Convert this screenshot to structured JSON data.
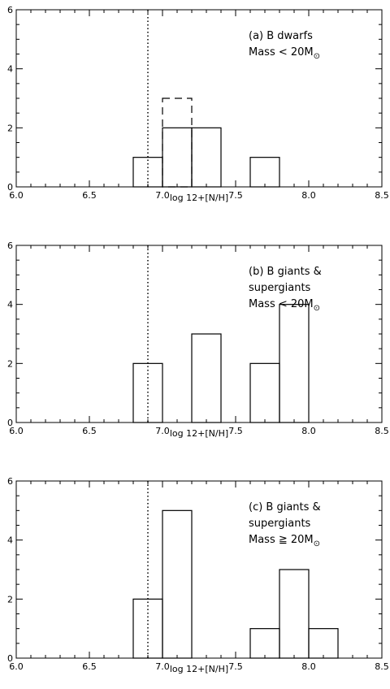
{
  "chart_data": [
    {
      "type": "bar",
      "panel_label": "(a) B dwarfs",
      "panel_sublabel": "Mass < 20M",
      "sun_symbol": "⊙",
      "xlabel": "log 12+[N/H]",
      "xlim": [
        6.0,
        8.5
      ],
      "ylim": [
        0,
        6
      ],
      "x_ticks": [
        "6.0",
        "6.5",
        "7.0",
        "7.5",
        "8.0",
        "8.5"
      ],
      "y_ticks": [
        "0",
        "2",
        "4",
        "6"
      ],
      "reference_line_x": 6.9,
      "bins": [
        {
          "x0": 6.8,
          "x1": 7.0,
          "count": 1
        },
        {
          "x0": 7.0,
          "x1": 7.2,
          "count": 2
        },
        {
          "x0": 7.2,
          "x1": 7.4,
          "count": 2
        },
        {
          "x0": 7.6,
          "x1": 7.8,
          "count": 1
        }
      ],
      "dashed_bins": [
        {
          "x0": 7.0,
          "x1": 7.2,
          "count": 3
        }
      ]
    },
    {
      "type": "bar",
      "panel_label": "(b) B giants &",
      "panel_label_2": "supergiants",
      "panel_sublabel": "Mass < 20M",
      "sun_symbol": "⊙",
      "xlabel": "log 12+[N/H]",
      "xlim": [
        6.0,
        8.5
      ],
      "ylim": [
        0,
        6
      ],
      "x_ticks": [
        "6.0",
        "6.5",
        "7.0",
        "7.5",
        "8.0",
        "8.5"
      ],
      "y_ticks": [
        "0",
        "2",
        "4",
        "6"
      ],
      "reference_line_x": 6.9,
      "bins": [
        {
          "x0": 6.8,
          "x1": 7.0,
          "count": 2
        },
        {
          "x0": 7.2,
          "x1": 7.4,
          "count": 3
        },
        {
          "x0": 7.6,
          "x1": 7.8,
          "count": 2
        },
        {
          "x0": 7.8,
          "x1": 8.0,
          "count": 4
        }
      ],
      "dashed_bins": []
    },
    {
      "type": "bar",
      "panel_label": "(c) B giants &",
      "panel_label_2": "supergiants",
      "panel_sublabel": "Mass ≧ 20M",
      "sun_symbol": "⊙",
      "xlabel": "log 12+[N/H]",
      "xlim": [
        6.0,
        8.5
      ],
      "ylim": [
        0,
        6
      ],
      "x_ticks": [
        "6.0",
        "6.5",
        "7.0",
        "7.5",
        "8.0",
        "8.5"
      ],
      "y_ticks": [
        "0",
        "2",
        "4",
        "6"
      ],
      "reference_line_x": 6.9,
      "bins": [
        {
          "x0": 6.8,
          "x1": 7.0,
          "count": 2
        },
        {
          "x0": 7.0,
          "x1": 7.2,
          "count": 5
        },
        {
          "x0": 7.6,
          "x1": 7.8,
          "count": 1
        },
        {
          "x0": 7.8,
          "x1": 8.0,
          "count": 3
        },
        {
          "x0": 8.0,
          "x1": 8.2,
          "count": 1
        }
      ],
      "dashed_bins": []
    }
  ]
}
